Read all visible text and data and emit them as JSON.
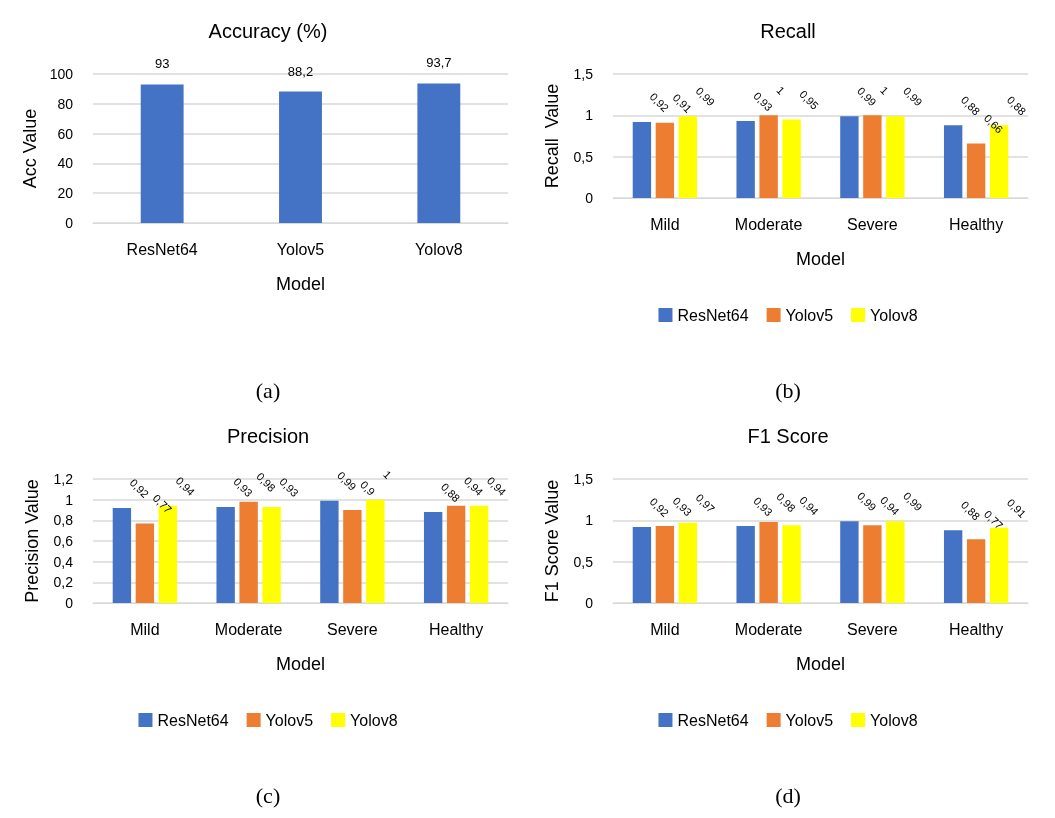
{
  "chart_data": [
    {
      "type": "bar",
      "title": "Accuracy (%)",
      "xlabel": "Model",
      "ylabel": "Acc Value",
      "categories": [
        "ResNet64",
        "Yolov5",
        "Yolov8"
      ],
      "values": [
        93,
        88.2,
        93.7
      ],
      "color": "#4472c4",
      "value_labels": [
        "93",
        "88,2",
        "93,7"
      ],
      "ylim": [
        0,
        100
      ],
      "yticks": [
        0,
        20,
        40,
        60,
        80,
        100
      ],
      "grid": "y",
      "annotations": [
        "(a)"
      ]
    },
    {
      "type": "bar",
      "title": "Recall",
      "xlabel": "Model",
      "ylabel": "Recall  Value",
      "categories": [
        "Mild",
        "Moderate",
        "Severe",
        "Healthy"
      ],
      "series": [
        {
          "name": "ResNet64",
          "color": "#4472c4",
          "values": [
            0.92,
            0.93,
            0.99,
            0.88
          ],
          "value_labels": [
            "0,92",
            "0,93",
            "0,99",
            "0,88"
          ]
        },
        {
          "name": "Yolov5",
          "color": "#ed7d31",
          "values": [
            0.91,
            1,
            1,
            0.66
          ],
          "value_labels": [
            "0,91",
            "1",
            "1",
            "0,66"
          ]
        },
        {
          "name": "Yolov8",
          "color": "#ffff00",
          "values": [
            0.99,
            0.95,
            0.99,
            0.88
          ],
          "value_labels": [
            "0,99",
            "0,95",
            "0,99",
            "0,88"
          ]
        }
      ],
      "ylim": [
        0,
        1.5
      ],
      "yticks": [
        0,
        {
          "value": 0.5,
          "label": "0,5"
        },
        1,
        {
          "value": 1.5,
          "label": "1,5"
        }
      ],
      "grid": "y",
      "legend": "bottom",
      "annotations": [
        "(b)"
      ]
    },
    {
      "type": "bar",
      "title": "Precision",
      "xlabel": "Model",
      "ylabel": "Precision Value",
      "categories": [
        "Mild",
        "Moderate",
        "Severe",
        "Healthy"
      ],
      "series": [
        {
          "name": "ResNet64",
          "color": "#4472c4",
          "values": [
            0.92,
            0.93,
            0.99,
            0.88
          ],
          "value_labels": [
            "0,92",
            "0,93",
            "0,99",
            "0,88"
          ]
        },
        {
          "name": "Yolov5",
          "color": "#ed7d31",
          "values": [
            0.77,
            0.98,
            0.9,
            0.94
          ],
          "value_labels": [
            "0,77",
            "0,98",
            "0,9",
            "0,94"
          ]
        },
        {
          "name": "Yolov8",
          "color": "#ffff00",
          "values": [
            0.94,
            0.93,
            1,
            0.94
          ],
          "value_labels": [
            "0,94",
            "0,93",
            "1",
            "0,94"
          ]
        }
      ],
      "ylim": [
        0,
        1.2
      ],
      "yticks": [
        0,
        {
          "value": 0.2,
          "label": "0,2"
        },
        {
          "value": 0.4,
          "label": "0,4"
        },
        {
          "value": 0.6,
          "label": "0,6"
        },
        {
          "value": 0.8,
          "label": "0,8"
        },
        1,
        {
          "value": 1.2,
          "label": "1,2"
        }
      ],
      "grid": "y",
      "legend": "bottom",
      "annotations": [
        "(c)"
      ]
    },
    {
      "type": "bar",
      "title": "F1 Score",
      "xlabel": "Model",
      "ylabel": "F1 Score Value",
      "categories": [
        "Mild",
        "Moderate",
        "Severe",
        "Healthy"
      ],
      "series": [
        {
          "name": "ResNet64",
          "color": "#4472c4",
          "values": [
            0.92,
            0.93,
            0.99,
            0.88
          ],
          "value_labels": [
            "0,92",
            "0,93",
            "0,99",
            "0,88"
          ]
        },
        {
          "name": "Yolov5",
          "color": "#ed7d31",
          "values": [
            0.93,
            0.98,
            0.94,
            0.77
          ],
          "value_labels": [
            "0,93",
            "0,98",
            "0,94",
            "0,77"
          ]
        },
        {
          "name": "Yolov8",
          "color": "#ffff00",
          "values": [
            0.97,
            0.94,
            0.99,
            0.91
          ],
          "value_labels": [
            "0,97",
            "0,94",
            "0,99",
            "0,91"
          ]
        }
      ],
      "ylim": [
        0,
        1.5
      ],
      "yticks": [
        0,
        {
          "value": 0.5,
          "label": "0,5"
        },
        1,
        {
          "value": 1.5,
          "label": "1,5"
        }
      ],
      "grid": "y",
      "legend": "bottom",
      "annotations": [
        "(d)"
      ]
    }
  ]
}
